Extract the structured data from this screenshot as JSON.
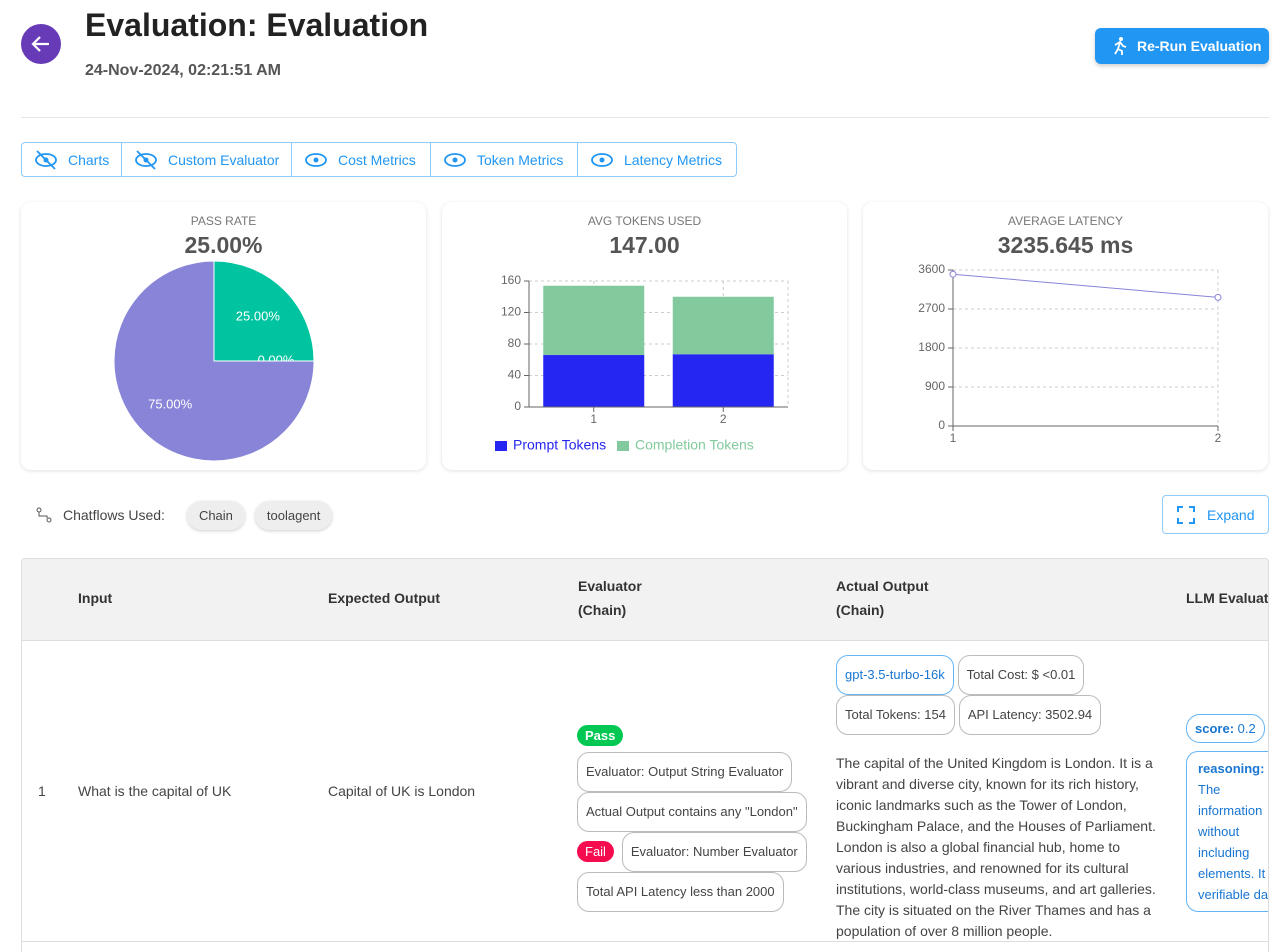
{
  "header": {
    "title": "Evaluation: Evaluation",
    "date": "24-Nov-2024, 02:21:51 AM",
    "rerun_button": "Re-Run Evaluation"
  },
  "toggles": [
    "Charts",
    "Custom Evaluator",
    "Cost Metrics",
    "Token Metrics",
    "Latency Metrics"
  ],
  "metric_cards": [
    {
      "label": "PASS RATE",
      "value": "25.00%"
    },
    {
      "label": "AVG TOKENS USED",
      "value": "147.00"
    },
    {
      "label": "AVERAGE LATENCY",
      "value": "3235.645 ms"
    }
  ],
  "chart_data": [
    {
      "type": "pie",
      "values": [
        25,
        0,
        75
      ],
      "value_labels": [
        "25.00%",
        "0.00%",
        "75.00%"
      ],
      "colors": [
        "#00c49f",
        "#ffbb28",
        "#8884d8"
      ]
    },
    {
      "type": "bar",
      "stacked": true,
      "categories": [
        "1",
        "2"
      ],
      "series": [
        {
          "name": "Prompt Tokens",
          "color": "#2626f2",
          "values": [
            66,
            67
          ]
        },
        {
          "name": "Completion Tokens",
          "color": "#82ca9d",
          "values": [
            88,
            73
          ]
        }
      ],
      "ylim": [
        0,
        160
      ],
      "yticks": [
        0,
        40,
        80,
        120,
        160
      ],
      "grid": true,
      "legend": "bottom"
    },
    {
      "type": "line",
      "x": [
        1,
        2
      ],
      "series": [
        {
          "color": "#8884d8",
          "values": [
            3502.94,
            2968.35
          ]
        }
      ],
      "xlim": [
        1,
        2
      ],
      "xticks": [
        1,
        2
      ],
      "ylim": [
        0,
        3600
      ],
      "yticks": [
        0,
        900,
        1800,
        2700,
        3600
      ],
      "grid": true
    }
  ],
  "chatflows": {
    "label": "Chatflows Used:",
    "chips": [
      "Chain",
      "toolagent"
    ],
    "expand_button": "Expand"
  },
  "table": {
    "headers": {
      "input": "Input",
      "expected": "Expected Output",
      "evaluator": "Evaluator",
      "evaluator_flow": "(Chain)",
      "actual": "Actual Output",
      "actual_flow": "(Chain)",
      "llm": "LLM Evaluation"
    },
    "rows": [
      {
        "index": 1,
        "input": "What is the capital of UK",
        "expected": "Capital of UK is London",
        "evaluators": [
          {
            "result": "Pass",
            "name": "Evaluator: Output String Evaluator",
            "detail": "Actual Output contains any \"London\""
          },
          {
            "result": "Fail",
            "name": "Evaluator: Number Evaluator",
            "detail": "Total API Latency less than 2000"
          }
        ],
        "model": "gpt-3.5-turbo-16k",
        "cost": "Total Cost: $ <0.01",
        "tokens": "Total Tokens: 154",
        "latency": "API Latency: 3502.94",
        "output": "The capital of the United Kingdom is London. It is a vibrant and diverse city, known for its rich history, iconic landmarks such as the Tower of London, Buckingham Palace, and the Houses of Parliament. London is also a global financial hub, home to various industries, and renowned for its cultural institutions, world-class museums, and art galleries. The city is situated on the River Thames and has a population of over 8 million people.",
        "score_label": "score:",
        "score": "0.2",
        "reasoning_label": "reasoning:",
        "reasoning": "The information without including elements. It verifiable data"
      }
    ]
  }
}
